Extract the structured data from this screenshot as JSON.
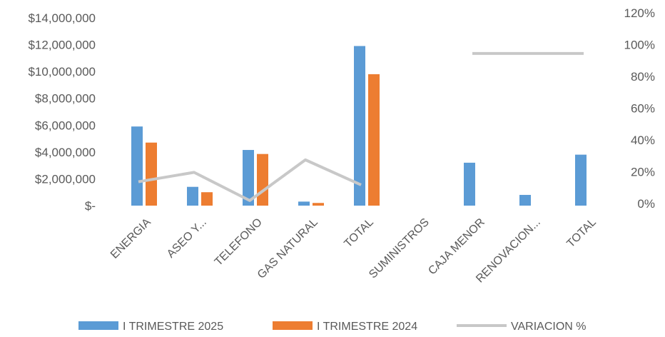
{
  "chart_data": {
    "type": "bar",
    "categories": [
      "ENERGIA",
      "ASEO Y...",
      "TELEFONO",
      "GAS NATURAL",
      "TOTAL",
      "SUMINISTROS",
      "CAJA MENOR",
      "RENOVACION...",
      "TOTAL"
    ],
    "series": [
      {
        "name": "I TRIMESTRE 2025",
        "type": "bar",
        "color": "#5B9BD5",
        "values": [
          5900000,
          1400000,
          4150000,
          300000,
          11900000,
          null,
          3200000,
          800000,
          3800000
        ]
      },
      {
        "name": "I TRIMESTRE 2024",
        "type": "bar",
        "color": "#ED7D31",
        "values": [
          4700000,
          1000000,
          3850000,
          200000,
          9800000,
          null,
          null,
          null,
          null
        ]
      },
      {
        "name": "VARIACION %",
        "type": "line",
        "axis": "secondary",
        "color": "#C8C8C8",
        "values": [
          0.18,
          0.24,
          0.06,
          0.32,
          0.16,
          null,
          1.0,
          1.0,
          1.0
        ]
      }
    ],
    "y_ticks": [
      "$14,000,000",
      "$12,000,000",
      "$10,000,000",
      "$8,000,000",
      "$6,000,000",
      "$4,000,000",
      "$2,000,000",
      "$-"
    ],
    "y2_ticks": [
      "120%",
      "100%",
      "80%",
      "60%",
      "40%",
      "20%",
      "0%"
    ],
    "ylim": [
      0,
      14000000
    ],
    "y2lim": [
      0,
      1.2
    ],
    "grid": false,
    "legend_position": "bottom"
  }
}
